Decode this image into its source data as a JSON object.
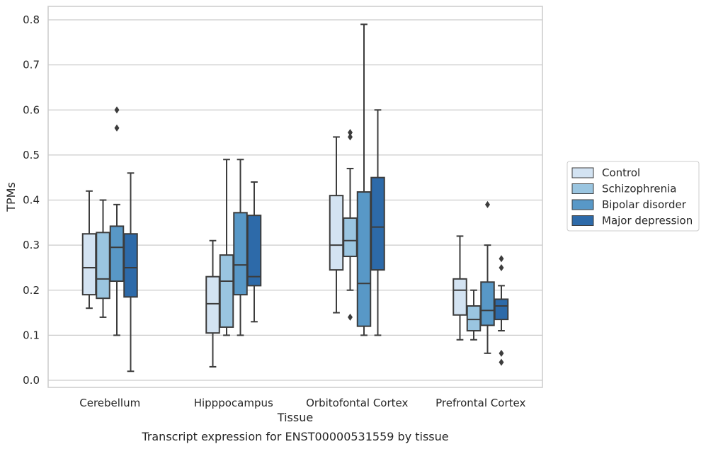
{
  "chart_data": {
    "type": "boxplot",
    "xlabel": "Tissue",
    "ylabel": "TPMs",
    "caption": "Transcript expression for ENST00000531559 by tissue",
    "ylim": [
      -0.015,
      0.83
    ],
    "yticks": [
      "0.0",
      "0.1",
      "0.2",
      "0.3",
      "0.4",
      "0.5",
      "0.6",
      "0.7",
      "0.8"
    ],
    "grid": true,
    "legend_position": "right",
    "categories": [
      "Cerebellum",
      "Hipppocampus",
      "Orbitofontal Cortex",
      "Prefrontal Cortex"
    ],
    "series": [
      {
        "name": "Control",
        "color": "#d3e3f2",
        "boxes": [
          {
            "whislo": 0.16,
            "q1": 0.19,
            "med": 0.25,
            "q3": 0.325,
            "whishi": 0.42,
            "fliers": []
          },
          {
            "whislo": 0.03,
            "q1": 0.105,
            "med": 0.17,
            "q3": 0.23,
            "whishi": 0.31,
            "fliers": []
          },
          {
            "whislo": 0.15,
            "q1": 0.245,
            "med": 0.3,
            "q3": 0.41,
            "whishi": 0.54,
            "fliers": []
          },
          {
            "whislo": 0.09,
            "q1": 0.145,
            "med": 0.2,
            "q3": 0.225,
            "whishi": 0.32,
            "fliers": []
          }
        ]
      },
      {
        "name": "Schizophrenia",
        "color": "#9ac5e0",
        "boxes": [
          {
            "whislo": 0.14,
            "q1": 0.182,
            "med": 0.225,
            "q3": 0.328,
            "whishi": 0.4,
            "fliers": []
          },
          {
            "whislo": 0.1,
            "q1": 0.118,
            "med": 0.22,
            "q3": 0.278,
            "whishi": 0.49,
            "fliers": []
          },
          {
            "whislo": 0.2,
            "q1": 0.275,
            "med": 0.31,
            "q3": 0.36,
            "whishi": 0.47,
            "fliers": [
              0.55,
              0.54,
              0.14
            ]
          },
          {
            "whislo": 0.09,
            "q1": 0.11,
            "med": 0.135,
            "q3": 0.165,
            "whishi": 0.2,
            "fliers": []
          }
        ]
      },
      {
        "name": "Bipolar disorder",
        "color": "#5898c7",
        "boxes": [
          {
            "whislo": 0.1,
            "q1": 0.22,
            "med": 0.295,
            "q3": 0.342,
            "whishi": 0.39,
            "fliers": [
              0.6,
              0.56
            ]
          },
          {
            "whislo": 0.1,
            "q1": 0.19,
            "med": 0.256,
            "q3": 0.372,
            "whishi": 0.49,
            "fliers": []
          },
          {
            "whislo": 0.1,
            "q1": 0.12,
            "med": 0.215,
            "q3": 0.418,
            "whishi": 0.79,
            "fliers": []
          },
          {
            "whislo": 0.06,
            "q1": 0.122,
            "med": 0.155,
            "q3": 0.218,
            "whishi": 0.3,
            "fliers": [
              0.39
            ]
          }
        ]
      },
      {
        "name": "Major depression",
        "color": "#2d6aa9",
        "boxes": [
          {
            "whislo": 0.02,
            "q1": 0.185,
            "med": 0.25,
            "q3": 0.325,
            "whishi": 0.46,
            "fliers": []
          },
          {
            "whislo": 0.13,
            "q1": 0.21,
            "med": 0.23,
            "q3": 0.366,
            "whishi": 0.44,
            "fliers": []
          },
          {
            "whislo": 0.1,
            "q1": 0.245,
            "med": 0.34,
            "q3": 0.45,
            "whishi": 0.6,
            "fliers": []
          },
          {
            "whislo": 0.11,
            "q1": 0.135,
            "med": 0.165,
            "q3": 0.18,
            "whishi": 0.21,
            "fliers": [
              0.27,
              0.25,
              0.06,
              0.04
            ]
          }
        ]
      }
    ]
  }
}
